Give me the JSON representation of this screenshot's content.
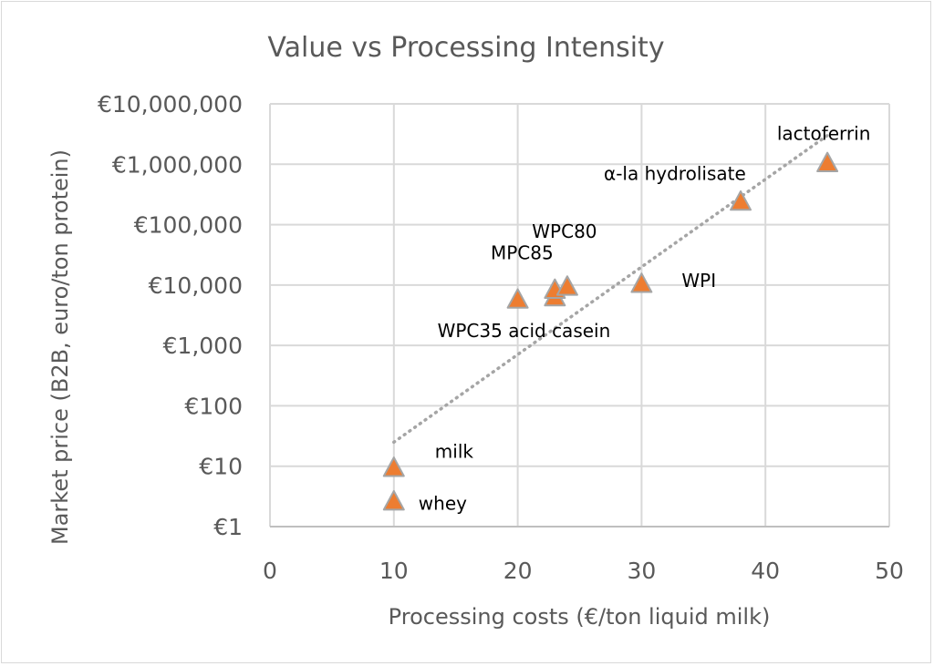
{
  "chart_data": {
    "type": "scatter",
    "title": "Value vs Processing Intensity",
    "xlabel": "Processing costs (€/ton liquid milk)",
    "ylabel": "Market price (B2B, euro/ton protein)",
    "x_scale": "linear",
    "y_scale": "log",
    "xlim": [
      0,
      50
    ],
    "ylim": [
      1,
      10000000
    ],
    "x_ticks": [
      0,
      10,
      20,
      30,
      40,
      50
    ],
    "x_tick_labels": [
      "0",
      "10",
      "20",
      "30",
      "40",
      "50"
    ],
    "y_ticks": [
      1,
      10,
      100,
      1000,
      10000,
      100000,
      1000000,
      10000000
    ],
    "y_tick_labels": [
      "€1",
      "€10",
      "€100",
      "€1,000",
      "€10,000",
      "€100,000",
      "€1,000,000",
      "€10,000,000"
    ],
    "grid": true,
    "legend": "none",
    "marker": "triangle",
    "marker_color": "#ED7D31",
    "marker_edge_color": "#A5A5A5",
    "trendline": {
      "type": "exponential",
      "style": "dotted",
      "color": "#A5A5A5",
      "start": [
        10,
        25
      ],
      "end": [
        45,
        3000000
      ]
    },
    "points": [
      {
        "label": "milk",
        "x": 10,
        "y": 9
      },
      {
        "label": "whey",
        "x": 10,
        "y": 2.5
      },
      {
        "label": "WPC35",
        "x": 20,
        "y": 5500
      },
      {
        "label": "acid casein",
        "x": 23,
        "y": 6000
      },
      {
        "label": "MPC85",
        "x": 23,
        "y": 8000
      },
      {
        "label": "WPC80",
        "x": 24,
        "y": 9000
      },
      {
        "label": "WPI",
        "x": 30,
        "y": 10000
      },
      {
        "label": "α-la hydrolisate",
        "x": 38,
        "y": 230000
      },
      {
        "label": "lactoferrin",
        "x": 45,
        "y": 1000000
      }
    ],
    "data_labels": [
      {
        "text": "milk",
        "anchor_point": "milk",
        "position": "upper-right"
      },
      {
        "text": "whey",
        "anchor_point": "whey",
        "position": "right"
      },
      {
        "text": "WPC35 acid casein",
        "anchor_point": "WPC35",
        "position": "below"
      },
      {
        "text": "MPC85",
        "anchor_point": "MPC85",
        "position": "above-left"
      },
      {
        "text": "WPC80",
        "anchor_point": "WPC80",
        "position": "above"
      },
      {
        "text": "WPI",
        "anchor_point": "WPI",
        "position": "right"
      },
      {
        "text": "α-la hydrolisate",
        "anchor_point": "α-la hydrolisate",
        "position": "upper-left"
      },
      {
        "text": "lactoferrin",
        "anchor_point": "lactoferrin",
        "position": "above-left"
      }
    ]
  }
}
